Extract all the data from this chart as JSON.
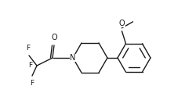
{
  "bg_color": "#ffffff",
  "line_color": "#1a1a1a",
  "line_width": 1.0,
  "font_size": 6.5,
  "fig_width": 2.36,
  "fig_height": 1.42,
  "dpi": 100,
  "xlim": [
    0,
    236
  ],
  "ylim": [
    0,
    142
  ]
}
